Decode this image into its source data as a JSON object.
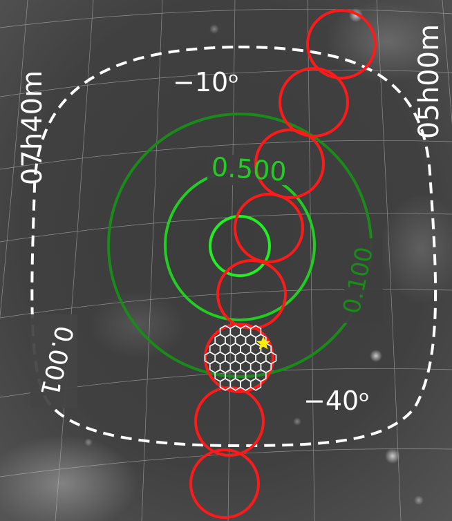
{
  "map": {
    "coordinate_labels": {
      "ra_left": "07h40m",
      "ra_right": "05h00m",
      "dec_top": "−10ᵒ",
      "dec_bottom": "−40ᵒ"
    },
    "contours": [
      {
        "label": "0.001",
        "style": "dashed",
        "color": "#ffffff"
      },
      {
        "label": "0.100",
        "style": "solid",
        "color": "#1a8a1a"
      },
      {
        "label": "0.500",
        "style": "solid",
        "color": "#22cc22"
      },
      {
        "label": "",
        "style": "solid",
        "color": "#22ee22"
      }
    ],
    "colors": {
      "sky_background": "#404040",
      "grid": "#cfcfcf",
      "pointings": "#ff1a1a",
      "tiles": "#ffffff",
      "transient_marker": "#ffee00"
    },
    "pointings_count": 8,
    "marker": "yellow-star-icon"
  }
}
